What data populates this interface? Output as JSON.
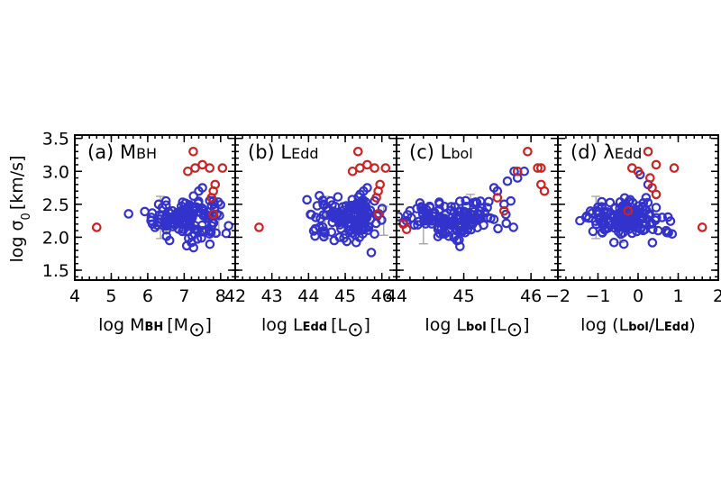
{
  "chart_data": [
    {
      "type": "scatter",
      "panel": "a",
      "title": "(a) M_BH",
      "title_parts": {
        "prefix": "(a) ",
        "main": "M",
        "sub": "BH"
      },
      "xlabel": "log M_BH [M_⊙]",
      "xlabel_parts": {
        "pre": "log  M",
        "sub": "BH",
        "post": "[M",
        "sym": "⊙",
        "close": "]"
      },
      "ylabel": "log σ_0 [km/s]",
      "xlim": [
        4,
        8.4
      ],
      "ylim": [
        1.35,
        3.55
      ],
      "xticks": [
        4,
        5,
        6,
        7,
        8
      ],
      "xtick_labels": [
        "4",
        "5",
        "6",
        "7",
        "8"
      ],
      "yticks": [
        1.5,
        2.0,
        2.5,
        3.0,
        3.5
      ],
      "ytick_labels": [
        "1.5",
        "2.0",
        "2.5",
        "3.0",
        "3.5"
      ],
      "blue_cluster": {
        "x_center": 7.05,
        "x_spread": 0.45,
        "y_center": 2.3,
        "y_spread": 0.15,
        "count": 140
      },
      "series": [
        {
          "color": "#3333cc",
          "points": [
            [
              6.1,
              2.3
            ],
            [
              6.2,
              2.15
            ],
            [
              7.9,
              2.35
            ],
            [
              7.8,
              2.55
            ],
            [
              7.5,
              2.75
            ],
            [
              6.5,
              2.55
            ],
            [
              6.4,
              2.45
            ],
            [
              7.7,
              2.05
            ],
            [
              6.3,
              2.5
            ],
            [
              7.4,
              2.7
            ],
            [
              6.6,
              1.95
            ],
            [
              7.2,
              1.92
            ]
          ]
        },
        {
          "color": "#cc2222",
          "points": [
            [
              4.6,
              2.15
            ],
            [
              7.25,
              3.3
            ],
            [
              7.1,
              3.0
            ],
            [
              7.3,
              3.05
            ],
            [
              7.5,
              3.1
            ],
            [
              7.7,
              3.05
            ],
            [
              8.05,
              3.05
            ],
            [
              7.85,
              2.8
            ],
            [
              7.8,
              2.7
            ],
            [
              7.75,
              2.6
            ],
            [
              7.8,
              2.35
            ]
          ]
        }
      ],
      "error_bars": [
        {
          "x": 6.35,
          "y": 2.3,
          "dy": 0.32
        },
        {
          "x": 7.95,
          "y": 2.25,
          "dy": 0.22
        }
      ]
    },
    {
      "type": "scatter",
      "panel": "b",
      "title": "(b) L_Edd",
      "title_parts": {
        "prefix": "(b) ",
        "main": "L",
        "sub": "Edd"
      },
      "xlabel": "log L_Edd [L_⊙]",
      "xlabel_parts": {
        "pre": "log  L",
        "sub": "Edd",
        "post": "[L",
        "sym": "⊙",
        "close": "]"
      },
      "xlim": [
        42,
        46.4
      ],
      "ylim": [
        1.35,
        3.55
      ],
      "xticks": [
        42,
        43,
        44,
        45,
        46
      ],
      "xtick_labels": [
        "42",
        "43",
        "44",
        "45",
        "46"
      ],
      "blue_cluster": {
        "x_center": 45.15,
        "x_spread": 0.45,
        "y_center": 2.3,
        "y_spread": 0.15,
        "count": 140
      },
      "series": [
        {
          "color": "#3333cc",
          "points": [
            [
              44.2,
              2.3
            ],
            [
              44.3,
              2.15
            ],
            [
              45.9,
              2.35
            ],
            [
              45.8,
              2.55
            ],
            [
              45.6,
              2.75
            ],
            [
              44.6,
              2.55
            ],
            [
              44.5,
              2.45
            ],
            [
              45.8,
              2.05
            ],
            [
              44.4,
              2.5
            ],
            [
              45.5,
              2.7
            ],
            [
              44.7,
              1.95
            ],
            [
              45.3,
              1.92
            ]
          ]
        },
        {
          "color": "#cc2222",
          "points": [
            [
              42.65,
              2.15
            ],
            [
              45.35,
              3.3
            ],
            [
              45.2,
              3.0
            ],
            [
              45.4,
              3.05
            ],
            [
              45.6,
              3.1
            ],
            [
              45.8,
              3.05
            ],
            [
              46.1,
              3.05
            ],
            [
              45.95,
              2.8
            ],
            [
              45.9,
              2.7
            ],
            [
              45.85,
              2.6
            ],
            [
              45.9,
              2.35
            ]
          ]
        }
      ],
      "error_bars": [
        {
          "x": 44.45,
          "y": 2.3,
          "dy": 0.32
        },
        {
          "x": 46.05,
          "y": 2.25,
          "dy": 0.22
        }
      ]
    },
    {
      "type": "scatter",
      "panel": "c",
      "title": "(c) L_bol",
      "title_parts": {
        "prefix": "(c) ",
        "main": "L",
        "sub": "bol"
      },
      "xlabel": "log L_bol [L_⊙]",
      "xlabel_parts": {
        "pre": "log  L",
        "sub": "bol",
        "post": "[L",
        "sym": "⊙",
        "close": "]"
      },
      "xlim": [
        44,
        46.4
      ],
      "ylim": [
        1.35,
        3.55
      ],
      "xticks": [
        44,
        45,
        46
      ],
      "xtick_labels": [
        "44",
        "45",
        "46"
      ],
      "blue_cluster": {
        "x_center": 44.85,
        "x_spread": 0.35,
        "y_center": 2.28,
        "y_spread": 0.13,
        "count": 150
      },
      "series": [
        {
          "color": "#3333cc",
          "points": [
            [
              45.5,
              2.7
            ],
            [
              45.6,
              2.5
            ],
            [
              45.7,
              2.55
            ],
            [
              45.8,
              2.9
            ],
            [
              45.9,
              3.0
            ],
            [
              45.75,
              3.0
            ],
            [
              45.65,
              2.85
            ],
            [
              45.45,
              2.75
            ],
            [
              45.35,
              2.45
            ],
            [
              44.15,
              2.25
            ],
            [
              44.2,
              2.4
            ],
            [
              44.9,
              1.95
            ],
            [
              44.5,
              2.45
            ]
          ]
        },
        {
          "color": "#cc2222",
          "points": [
            [
              45.95,
              3.3
            ],
            [
              46.1,
              3.05
            ],
            [
              46.15,
              3.05
            ],
            [
              45.8,
              3.0
            ],
            [
              46.15,
              2.8
            ],
            [
              46.2,
              2.7
            ],
            [
              45.5,
              2.6
            ],
            [
              45.6,
              2.4
            ],
            [
              44.1,
              2.2
            ],
            [
              44.15,
              2.12
            ]
          ]
        }
      ],
      "error_bars": [
        {
          "x": 44.4,
          "y": 2.2,
          "dy": 0.3
        },
        {
          "x": 45.1,
          "y": 2.45,
          "dy": 0.2
        }
      ]
    },
    {
      "type": "scatter",
      "panel": "d",
      "title": "(d) λ_Edd",
      "title_parts": {
        "prefix": "(d) ",
        "main": "λ",
        "sub": "Edd"
      },
      "xlabel": "log (L_bol/L_Edd)",
      "xlabel_parts": {
        "pre": "log  (L",
        "sub": "bol",
        "mid": "/L",
        "sub2": "Edd",
        "close": ")"
      },
      "xlim": [
        -2,
        2
      ],
      "ylim": [
        1.35,
        3.55
      ],
      "xticks": [
        -2,
        -1,
        0,
        1,
        2
      ],
      "xtick_labels": [
        "−2",
        "−1",
        "0",
        "1",
        "2"
      ],
      "blue_cluster": {
        "x_center": -0.3,
        "x_spread": 0.45,
        "y_center": 2.28,
        "y_spread": 0.15,
        "count": 140
      },
      "series": [
        {
          "color": "#3333cc",
          "points": [
            [
              -1.3,
              2.3
            ],
            [
              -1.45,
              2.25
            ],
            [
              0.7,
              2.1
            ],
            [
              0.6,
              2.3
            ],
            [
              0.45,
              2.45
            ],
            [
              0.85,
              2.05
            ],
            [
              0.3,
              2.2
            ],
            [
              0.2,
              2.6
            ],
            [
              -0.9,
              2.45
            ],
            [
              0.05,
              2.95
            ],
            [
              0.25,
              2.8
            ],
            [
              -0.6,
              1.92
            ],
            [
              0.5,
              2.1
            ]
          ]
        },
        {
          "color": "#cc2222",
          "points": [
            [
              -0.15,
              3.05
            ],
            [
              0.25,
              3.3
            ],
            [
              0.0,
              3.0
            ],
            [
              0.3,
              2.9
            ],
            [
              0.45,
              3.1
            ],
            [
              0.9,
              3.05
            ],
            [
              0.35,
              2.75
            ],
            [
              0.45,
              2.65
            ],
            [
              -0.25,
              2.4
            ],
            [
              1.6,
              2.15
            ]
          ]
        }
      ],
      "error_bars": [
        {
          "x": -1.05,
          "y": 2.3,
          "dy": 0.32
        },
        {
          "x": -0.45,
          "y": 2.2,
          "dy": 0.28
        }
      ]
    }
  ],
  "shared": {
    "ylabel_parts": {
      "pre": "log σ",
      "sub": "0",
      "post": "[km/s]"
    },
    "colors": {
      "blue": "#3333cc",
      "red": "#cc2222",
      "error": "#a0a0a0"
    }
  }
}
